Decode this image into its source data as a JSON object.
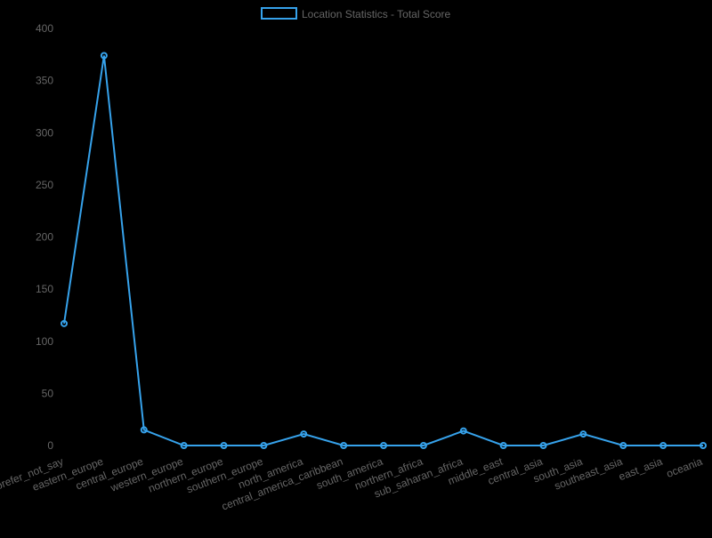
{
  "chart_data": {
    "type": "line",
    "categories": [
      "prefer_not_say",
      "eastern_europe",
      "central_europe",
      "western_europe",
      "northern_europe",
      "southern_europe",
      "north_america",
      "central_america_caribbean",
      "south_america",
      "northern_africa",
      "sub_saharan_africa",
      "middle_east",
      "central_asia",
      "south_asia",
      "southeast_asia",
      "east_asia",
      "oceania"
    ],
    "series": [
      {
        "name": "Location Statistics - Total Score",
        "values": [
          117,
          374,
          15,
          0,
          0,
          0,
          11,
          0,
          0,
          0,
          14,
          0,
          0,
          11,
          0,
          0,
          0
        ]
      }
    ],
    "ylim": [
      0,
      400
    ],
    "yticks": [
      0,
      50,
      100,
      150,
      200,
      250,
      300,
      350,
      400
    ],
    "grid": false,
    "legend": "top-center",
    "colors": {
      "background": "#000000",
      "line": "#36a2eb",
      "text": "#666666"
    }
  }
}
